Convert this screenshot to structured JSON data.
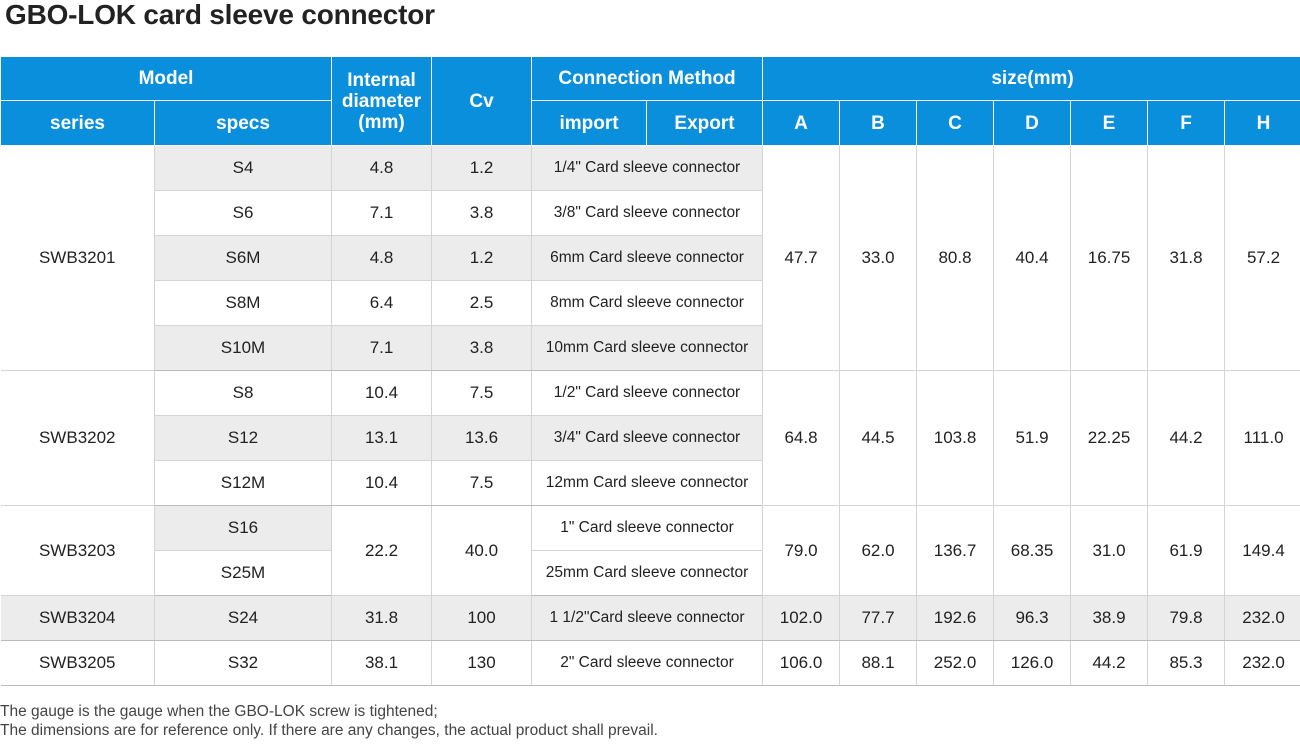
{
  "title": "GBO-LOK card sleeve connector",
  "headers": {
    "model": "Model",
    "internal_diameter": "Internal diameter (mm)",
    "cv": "Cv",
    "connection_method": "Connection Method",
    "size": "size(mm)",
    "series": "series",
    "specs": "specs",
    "import": "import",
    "export": "Export",
    "a": "A",
    "b": "B",
    "c": "C",
    "d": "D",
    "e": "E",
    "f": "F",
    "h": "H"
  },
  "groups": [
    {
      "series": "SWB3201",
      "size": {
        "A": "47.7",
        "B": "33.0",
        "C": "80.8",
        "D": "40.4",
        "E": "16.75",
        "F": "31.8",
        "H": "57.2"
      },
      "rows": [
        {
          "spec": "S4",
          "diameter": "4.8",
          "cv": "1.2",
          "connection": "1/4\" Card sleeve connector"
        },
        {
          "spec": "S6",
          "diameter": "7.1",
          "cv": "3.8",
          "connection": "3/8\" Card sleeve connector"
        },
        {
          "spec": "S6M",
          "diameter": "4.8",
          "cv": "1.2",
          "connection": "6mm Card sleeve connector"
        },
        {
          "spec": "S8M",
          "diameter": "6.4",
          "cv": "2.5",
          "connection": "8mm Card sleeve connector"
        },
        {
          "spec": "S10M",
          "diameter": "7.1",
          "cv": "3.8",
          "connection": "10mm Card sleeve connector"
        }
      ]
    },
    {
      "series": "SWB3202",
      "size": {
        "A": "64.8",
        "B": "44.5",
        "C": "103.8",
        "D": "51.9",
        "E": "22.25",
        "F": "44.2",
        "H": "111.0"
      },
      "rows": [
        {
          "spec": "S8",
          "diameter": "10.4",
          "cv": "7.5",
          "connection": "1/2\" Card sleeve connector"
        },
        {
          "spec": "S12",
          "diameter": "13.1",
          "cv": "13.6",
          "connection": "3/4\" Card sleeve connector"
        },
        {
          "spec": "S12M",
          "diameter": "10.4",
          "cv": "7.5",
          "connection": "12mm Card sleeve connector"
        }
      ]
    },
    {
      "series": "SWB3203",
      "diameter": "22.2",
      "cv": "40.0",
      "size": {
        "A": "79.0",
        "B": "62.0",
        "C": "136.7",
        "D": "68.35",
        "E": "31.0",
        "F": "61.9",
        "H": "149.4"
      },
      "rows": [
        {
          "spec": "S16",
          "connection": "1\" Card sleeve connector"
        },
        {
          "spec": "S25M",
          "connection": "25mm Card sleeve connector"
        }
      ]
    },
    {
      "series": "SWB3204",
      "size": {
        "A": "102.0",
        "B": "77.7",
        "C": "192.6",
        "D": "96.3",
        "E": "38.9",
        "F": "79.8",
        "H": "232.0"
      },
      "rows": [
        {
          "spec": "S24",
          "diameter": "31.8",
          "cv": "100",
          "connection": "1 1/2\"Card sleeve connector"
        }
      ]
    },
    {
      "series": "SWB3205",
      "size": {
        "A": "106.0",
        "B": "88.1",
        "C": "252.0",
        "D": "126.0",
        "E": "44.2",
        "F": "85.3",
        "H": "232.0"
      },
      "rows": [
        {
          "spec": "S32",
          "diameter": "38.1",
          "cv": "130",
          "connection": "2\" Card sleeve connector"
        }
      ]
    }
  ],
  "notes": [
    "The gauge is the gauge when the GBO-LOK screw is tightened;",
    "The dimensions are for reference only. If there are any changes, the actual product shall prevail."
  ],
  "colors": {
    "header_bg": "#0a8fdc",
    "header_text": "#ffffff",
    "row_gray": "#ececec",
    "border": "#d4d4d4"
  }
}
